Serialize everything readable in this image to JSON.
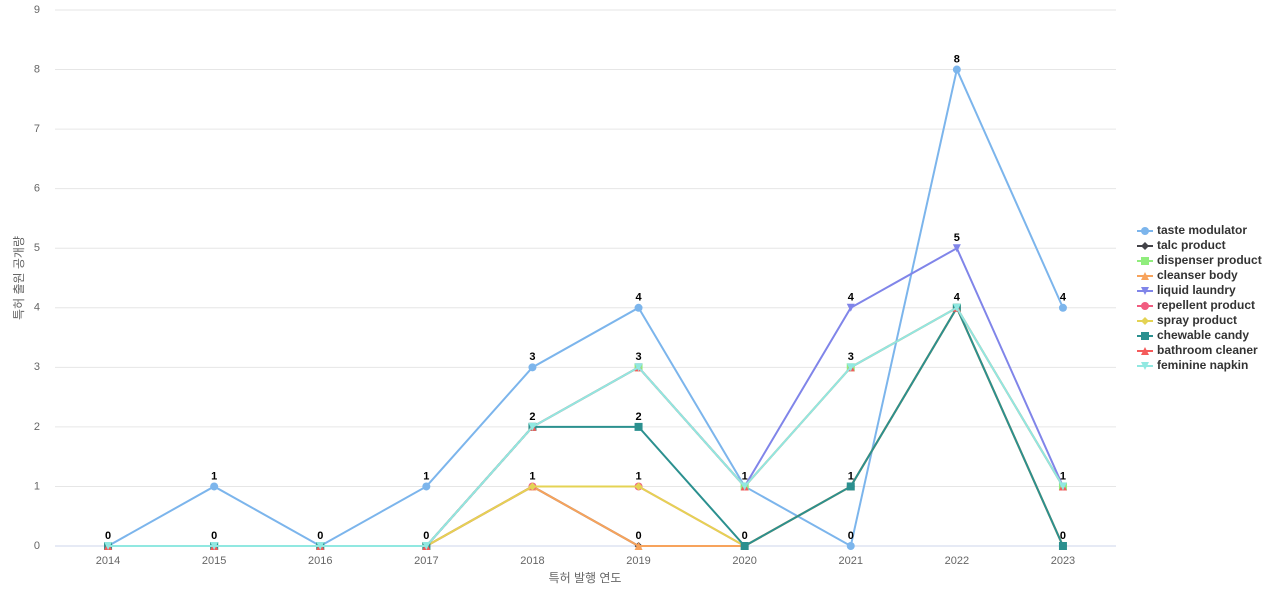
{
  "chart_data": {
    "type": "line",
    "x_label": "특허 발행 연도",
    "y_label": "특허 출원 공개량",
    "categories": [
      "2014",
      "2015",
      "2016",
      "2017",
      "2018",
      "2019",
      "2020",
      "2021",
      "2022",
      "2023"
    ],
    "ylim": [
      0,
      9
    ],
    "yticks": [
      0,
      1,
      2,
      3,
      4,
      5,
      6,
      7,
      8,
      9
    ],
    "grid": true,
    "legend": "right",
    "series": [
      {
        "name": "taste modulator",
        "color": "#7cb5ec",
        "values": [
          0,
          1,
          0,
          1,
          3,
          4,
          1,
          0,
          8,
          4
        ]
      },
      {
        "name": "talc product",
        "color": "#434348",
        "values": [
          0,
          0,
          0,
          0,
          1,
          0,
          0,
          1,
          4,
          0
        ]
      },
      {
        "name": "dispenser product",
        "color": "#90ed7d",
        "values": [
          0,
          0,
          0,
          0,
          2,
          3,
          1,
          3,
          4,
          1
        ]
      },
      {
        "name": "cleanser body",
        "color": "#f7a35c",
        "values": [
          0,
          0,
          0,
          0,
          1,
          0,
          0,
          1,
          4,
          0
        ]
      },
      {
        "name": "liquid laundry",
        "color": "#8085e9",
        "values": [
          0,
          0,
          0,
          0,
          2,
          3,
          1,
          4,
          5,
          1
        ]
      },
      {
        "name": "repellent product",
        "color": "#f15c80",
        "values": [
          0,
          0,
          0,
          0,
          1,
          1,
          0,
          1,
          4,
          0
        ]
      },
      {
        "name": "spray product",
        "color": "#e4d354",
        "values": [
          0,
          0,
          0,
          0,
          1,
          1,
          0,
          1,
          4,
          0
        ]
      },
      {
        "name": "chewable candy",
        "color": "#2b908f",
        "values": [
          0,
          0,
          0,
          0,
          2,
          2,
          0,
          1,
          4,
          0
        ]
      },
      {
        "name": "bathroom cleaner",
        "color": "#f45b5b",
        "values": [
          0,
          0,
          0,
          0,
          2,
          3,
          1,
          3,
          4,
          1
        ]
      },
      {
        "name": "feminine napkin",
        "color": "#91e8e1",
        "values": [
          0,
          0,
          0,
          0,
          2,
          3,
          1,
          3,
          4,
          1
        ]
      }
    ]
  }
}
